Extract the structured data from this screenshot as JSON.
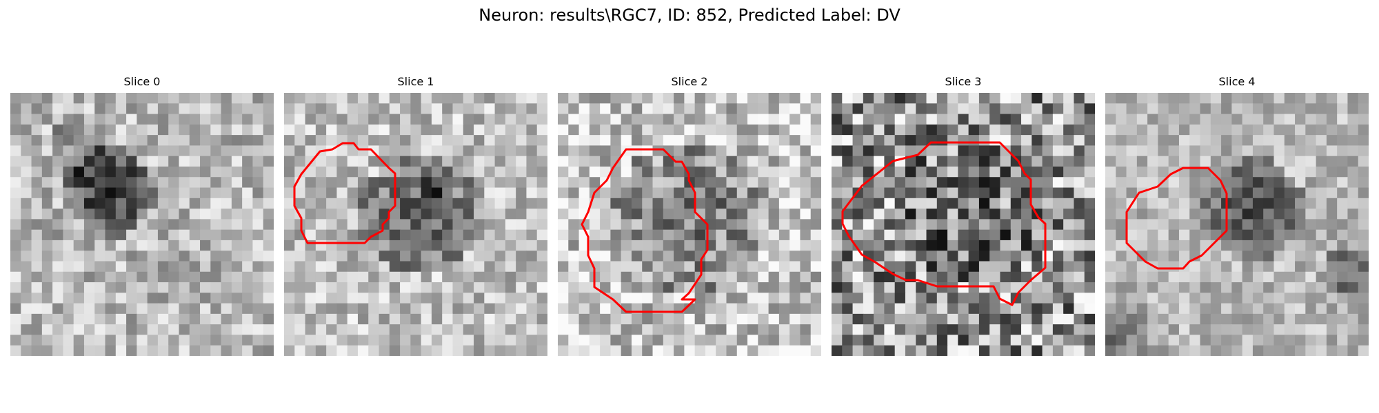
{
  "figure": {
    "title": "Neuron: results\\RGC7, ID: 852, Predicted Label: DV"
  },
  "colors": {
    "contour": "#ff0000",
    "background": "#ffffff"
  },
  "panels": [
    {
      "title": "Slice 0",
      "has_contour": false
    },
    {
      "title": "Slice 1",
      "has_contour": true
    },
    {
      "title": "Slice 2",
      "has_contour": true
    },
    {
      "title": "Slice 3",
      "has_contour": true
    },
    {
      "title": "Slice 4",
      "has_contour": true
    }
  ]
}
